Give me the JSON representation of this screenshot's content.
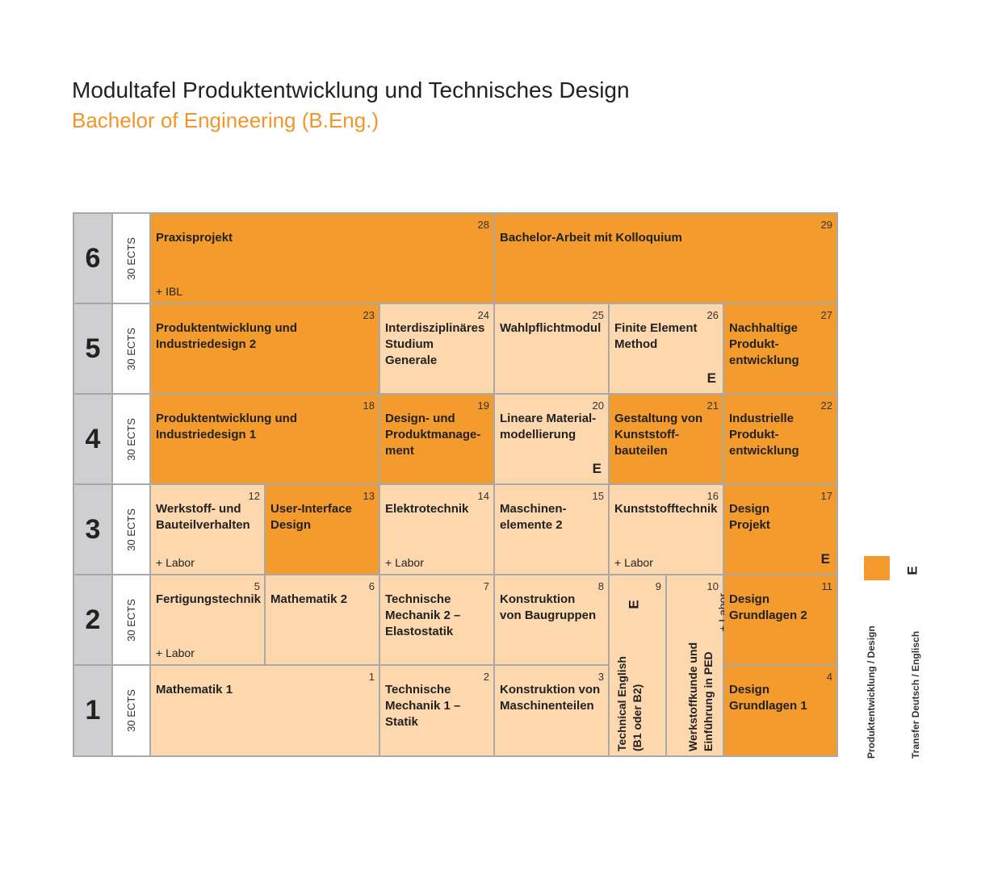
{
  "header": {
    "title": "Modultafel Produktentwicklung und Technisches Design",
    "subtitle": "Bachelor of Engineering (B.Eng.)"
  },
  "colors": {
    "produktentwicklung_design": "#f39b2c",
    "transfer": "#fdd8ae",
    "semester": "#cfcfd1",
    "accent_subtitle": "#f0962a"
  },
  "semesters": [
    {
      "number": "6",
      "ects": "30 ECTS"
    },
    {
      "number": "5",
      "ects": "30 ECTS"
    },
    {
      "number": "4",
      "ects": "30 ECTS"
    },
    {
      "number": "3",
      "ects": "30 ECTS"
    },
    {
      "number": "2",
      "ects": "30 ECTS"
    },
    {
      "number": "1",
      "ects": "30 ECTS"
    }
  ],
  "modules": {
    "m28": {
      "num": "28",
      "name": "Praxisprojekt",
      "extra": "+ IBL"
    },
    "m29": {
      "num": "29",
      "name": "Bachelor-Arbeit mit Kolloquium"
    },
    "m23": {
      "num": "23",
      "name": "Produktentwicklung und\nIndustriedesign 2"
    },
    "m24": {
      "num": "24",
      "name": "Interdisziplinäres\nStudium\nGenerale"
    },
    "m25": {
      "num": "25",
      "name": "Wahlpflichtmodul"
    },
    "m26": {
      "num": "26",
      "name": "Finite Element\nMethod",
      "eng": "E"
    },
    "m27": {
      "num": "27",
      "name": "Nachhaltige\nProdukt-\nentwicklung"
    },
    "m18": {
      "num": "18",
      "name": "Produktentwicklung und\nIndustriedesign 1"
    },
    "m19": {
      "num": "19",
      "name": "Design- und\nProduktmanage-\nment"
    },
    "m20": {
      "num": "20",
      "name": "Lineare Material-\nmodellierung",
      "eng": "E"
    },
    "m21": {
      "num": "21",
      "name": "Gestaltung von\nKunststoff-\nbauteilen"
    },
    "m22": {
      "num": "22",
      "name": "Industrielle\nProdukt-\nentwicklung"
    },
    "m12": {
      "num": "12",
      "name": "Werkstoff- und\nBauteilverhalten",
      "extra": "+ Labor"
    },
    "m13": {
      "num": "13",
      "name": "User-Interface\nDesign"
    },
    "m14": {
      "num": "14",
      "name": "Elektrotechnik",
      "extra": "+ Labor"
    },
    "m15": {
      "num": "15",
      "name": "Maschinen-\nelemente 2"
    },
    "m16": {
      "num": "16",
      "name": "Kunststofftechnik",
      "extra": "+ Labor"
    },
    "m17": {
      "num": "17",
      "name": "Design\nProjekt",
      "eng": "E"
    },
    "m5": {
      "num": "5",
      "name": "Fertigungstechnik",
      "extra": "+ Labor"
    },
    "m6": {
      "num": "6",
      "name": "Mathematik 2"
    },
    "m7": {
      "num": "7",
      "name": "Technische\nMechanik 2 –\nElastostatik"
    },
    "m8": {
      "num": "8",
      "name": "Konstruktion\nvon Baugruppen"
    },
    "m9": {
      "num": "9",
      "name": "Technical English\n(B1 oder B2)",
      "eng": "E"
    },
    "m10": {
      "num": "10",
      "name": "Werkstoffkunde und\nEinführung in PED",
      "extra": "+ Labor"
    },
    "m11": {
      "num": "11",
      "name": "Design\nGrundlagen 2"
    },
    "m1": {
      "num": "1",
      "name": "Mathematik 1"
    },
    "m2": {
      "num": "2",
      "name": "Technische\nMechanik 1 –\nStatik"
    },
    "m3": {
      "num": "3",
      "name": "Konstruktion von\nMaschinenteilen"
    },
    "m4": {
      "num": "4",
      "name": "Design\nGrundlagen 1"
    }
  },
  "legend": {
    "produktentwicklung_label": "Produktentwicklung / Design",
    "e_symbol": "E",
    "transfer_label": "Transfer Deutsch / Englisch"
  }
}
